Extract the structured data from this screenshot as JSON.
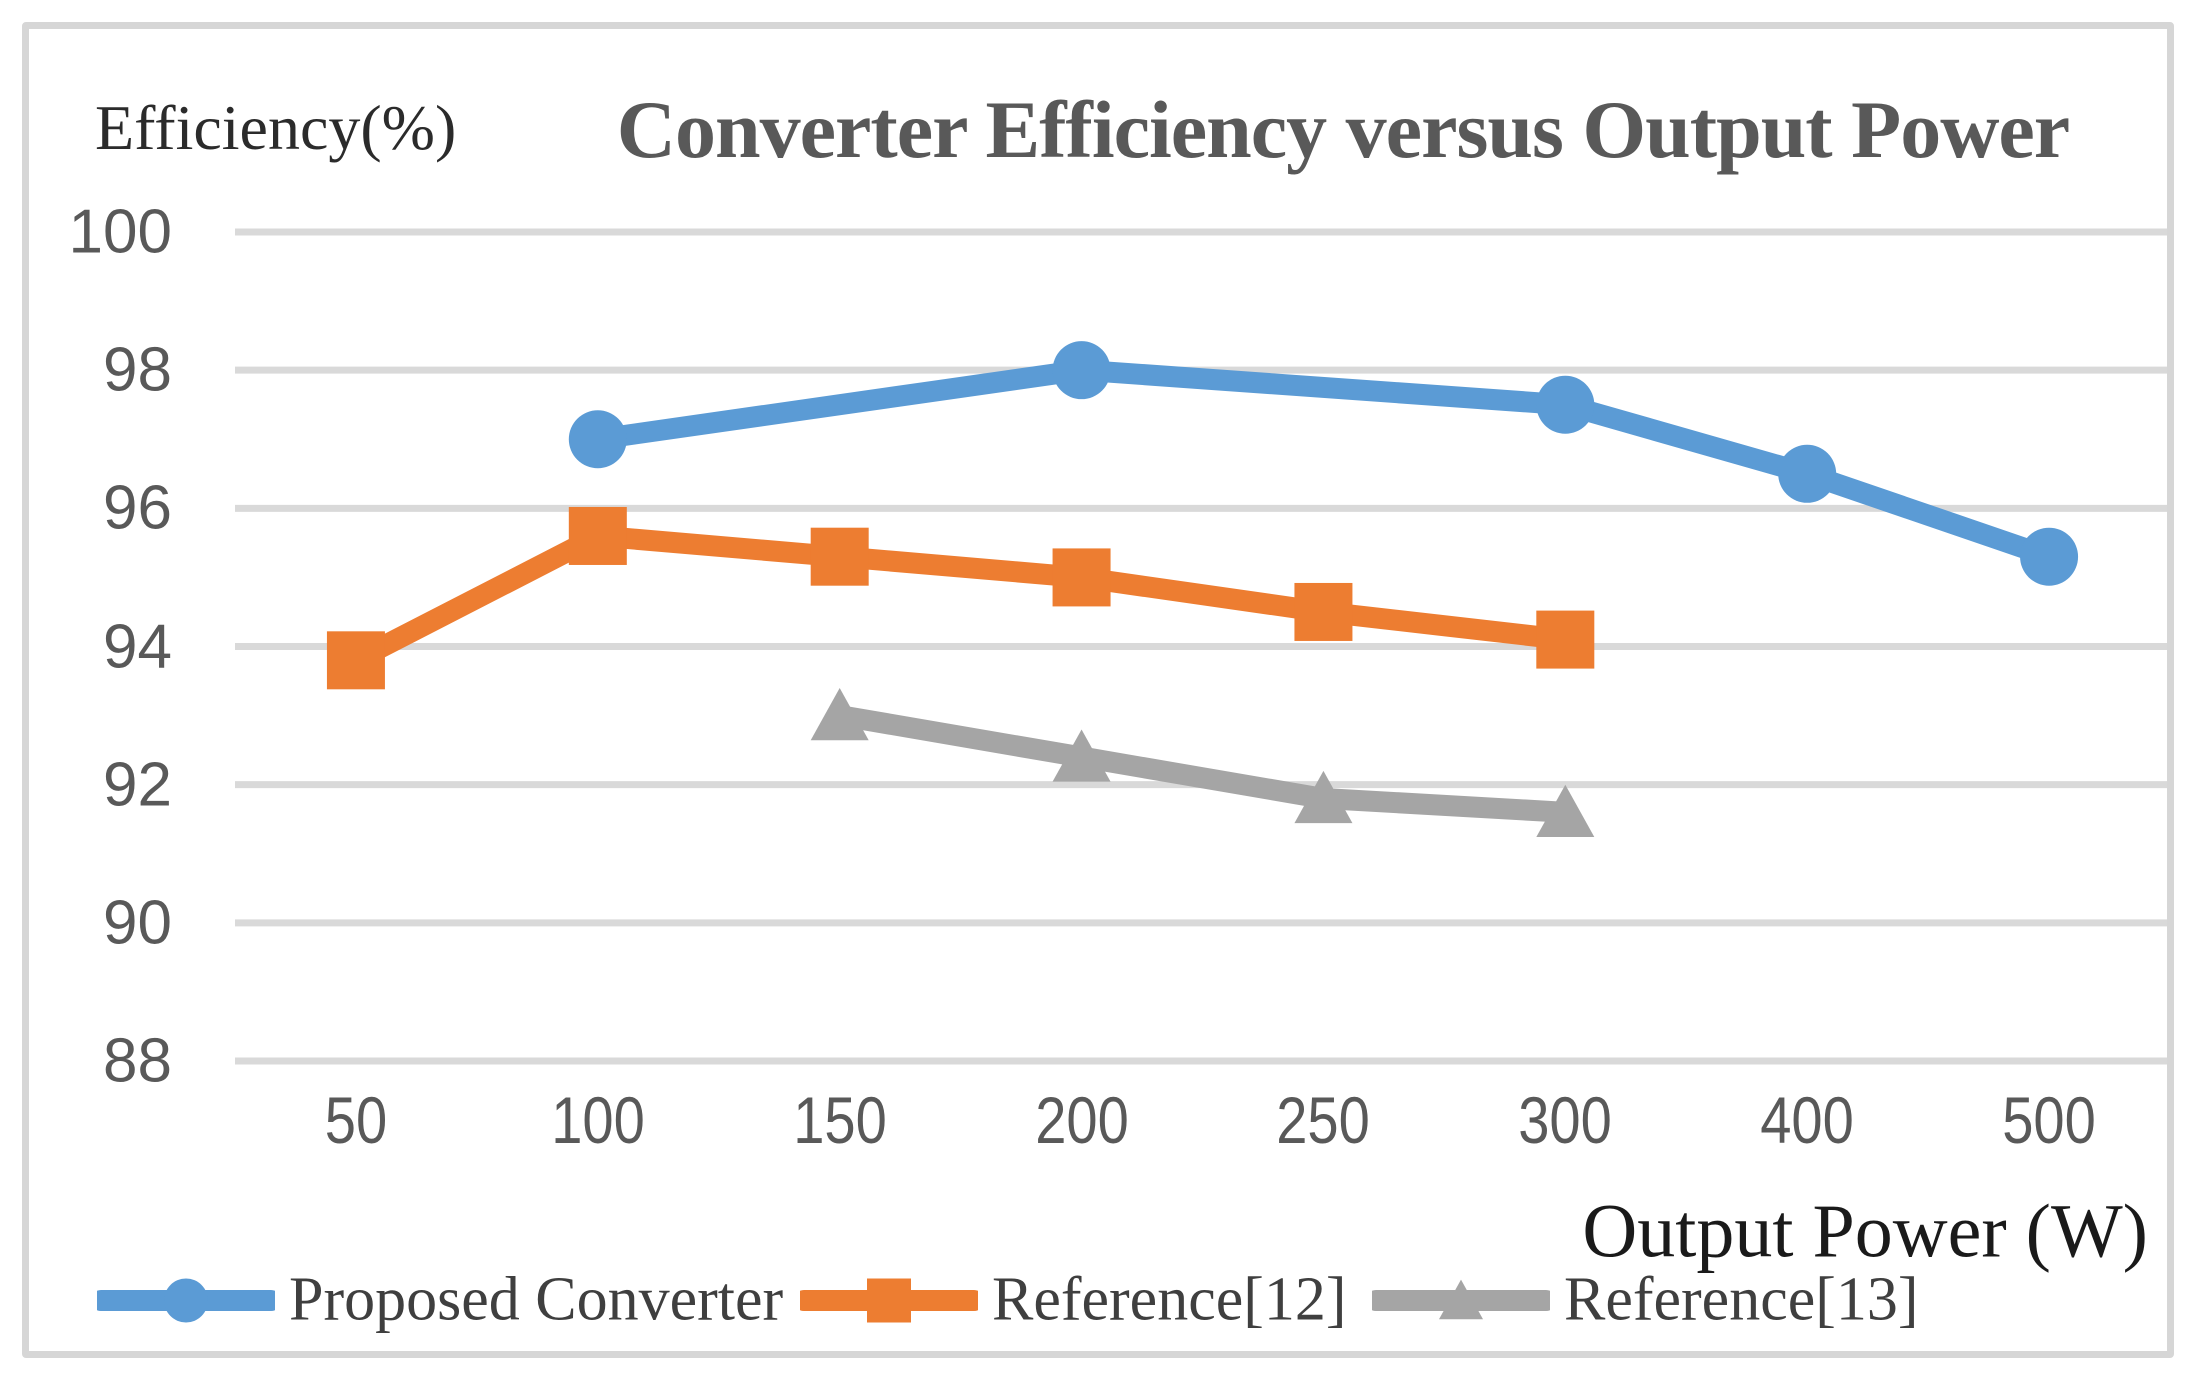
{
  "chart_data": {
    "type": "line",
    "title": "Converter Efficiency versus Output Power",
    "y_axis_label": "Efficiency(%)",
    "x_axis_label": "Output Power (W)",
    "categories": [
      50,
      100,
      150,
      200,
      250,
      300,
      400,
      500
    ],
    "y_ticks": [
      100,
      98,
      96,
      94,
      92,
      90,
      88
    ],
    "ylim": [
      88,
      100
    ],
    "grid": true,
    "gridline_color": "#d9d9d9",
    "frame_color": "#d6d6d6",
    "legend_position": "bottom",
    "series": [
      {
        "name": "Proposed Converter",
        "color": "#5B9BD5",
        "marker": "circle",
        "points": [
          {
            "category": 100,
            "value": 97.0
          },
          {
            "category": 200,
            "value": 98.0
          },
          {
            "category": 300,
            "value": 97.5
          },
          {
            "category": 400,
            "value": 96.5
          },
          {
            "category": 500,
            "value": 95.3
          }
        ]
      },
      {
        "name": "Reference[12]",
        "color": "#ED7D31",
        "marker": "square",
        "points": [
          {
            "category": 50,
            "value": 93.8
          },
          {
            "category": 100,
            "value": 95.6
          },
          {
            "category": 150,
            "value": 95.3
          },
          {
            "category": 200,
            "value": 95.0
          },
          {
            "category": 250,
            "value": 94.5
          },
          {
            "category": 300,
            "value": 94.1
          }
        ]
      },
      {
        "name": "Reference[13]",
        "color": "#A5A5A5",
        "marker": "triangle",
        "points": [
          {
            "category": 150,
            "value": 93.0
          },
          {
            "category": 200,
            "value": 92.4
          },
          {
            "category": 250,
            "value": 91.8
          },
          {
            "category": 300,
            "value": 91.6
          }
        ]
      }
    ]
  }
}
